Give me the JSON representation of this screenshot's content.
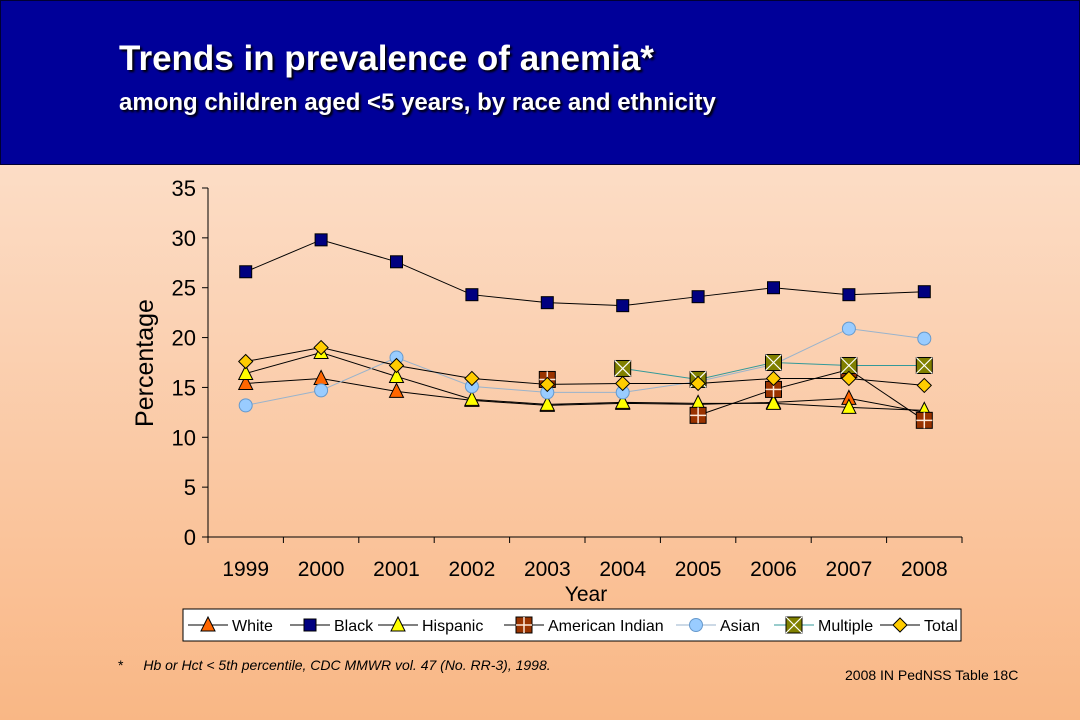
{
  "header": {
    "title": "Trends in prevalence of anemia*",
    "subtitle": "among children aged <5 years, by race and ethnicity"
  },
  "footnote": {
    "marker": "*",
    "text": "Hb or Hct < 5th percentile, CDC MMWR vol. 47 (No. RR-3), 1998."
  },
  "source": "2008 IN PedNSS Table 18C",
  "colors": {
    "header_bg": "#000099",
    "orange": "#FF6600",
    "navy": "#000080",
    "yellow": "#FFFF00",
    "brown": "#993300",
    "lightblue": "#99CCFF",
    "olive": "#808000",
    "gold": "#FFCC00"
  },
  "chart_data": {
    "type": "line",
    "xlabel": "Year",
    "ylabel": "Percentage",
    "categories": [
      "1999",
      "2000",
      "2001",
      "2002",
      "2003",
      "2004",
      "2005",
      "2006",
      "2007",
      "2008"
    ],
    "ylim": [
      0,
      35
    ],
    "yticks": [
      0,
      5,
      10,
      15,
      20,
      25,
      30,
      35
    ],
    "grid": false,
    "legend_position": "bottom",
    "series": [
      {
        "name": "White",
        "marker": "triangle",
        "color": "#FF6600",
        "values": [
          15.4,
          15.9,
          14.6,
          13.7,
          13.2,
          13.4,
          13.3,
          13.5,
          13.9,
          12.5
        ]
      },
      {
        "name": "Black",
        "marker": "square",
        "color": "#000080",
        "values": [
          26.6,
          29.8,
          27.6,
          24.3,
          23.5,
          23.2,
          24.1,
          25.0,
          24.3,
          24.6
        ]
      },
      {
        "name": "Hispanic",
        "marker": "triangle",
        "color": "#FFFF00",
        "values": [
          16.4,
          18.5,
          16.1,
          13.8,
          13.3,
          13.5,
          13.4,
          13.4,
          13.0,
          12.7
        ]
      },
      {
        "name": "American Indian",
        "marker": "square-cross",
        "color": "#993300",
        "values": [
          null,
          null,
          null,
          null,
          15.8,
          null,
          12.2,
          14.8,
          16.8,
          11.7
        ]
      },
      {
        "name": "Asian",
        "marker": "circle",
        "color": "#99CCFF",
        "values": [
          13.2,
          14.7,
          18.0,
          15.1,
          14.5,
          14.5,
          15.6,
          17.3,
          20.9,
          19.9
        ]
      },
      {
        "name": "Multiple",
        "marker": "square-x",
        "color": "#808000",
        "values": [
          null,
          null,
          null,
          null,
          null,
          16.9,
          15.8,
          17.5,
          17.2,
          17.2
        ]
      },
      {
        "name": "Total",
        "marker": "diamond",
        "color": "#FFCC00",
        "values": [
          17.6,
          19.0,
          17.2,
          15.9,
          15.3,
          15.4,
          15.4,
          15.9,
          15.9,
          15.2
        ]
      }
    ]
  }
}
